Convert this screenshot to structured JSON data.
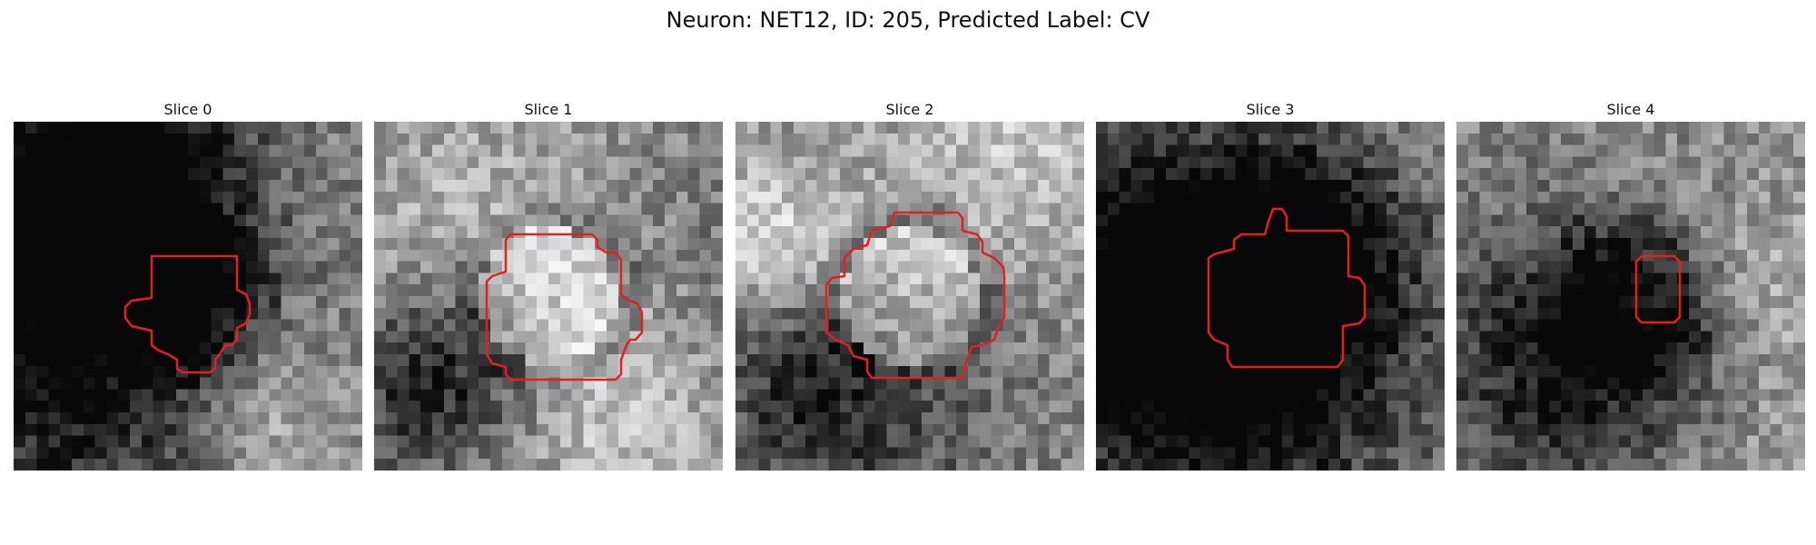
{
  "figure": {
    "title": "Neuron: NET12, ID: 205, Predicted Label: CV",
    "contour_color": "#e32020"
  },
  "slices": [
    {
      "title": "Slice 0",
      "seed": 11,
      "center_tone": "dark"
    },
    {
      "title": "Slice 1",
      "seed": 23,
      "center_tone": "light"
    },
    {
      "title": "Slice 2",
      "seed": 37,
      "center_tone": "light"
    },
    {
      "title": "Slice 3",
      "seed": 53,
      "center_tone": "mid"
    },
    {
      "title": "Slice 4",
      "seed": 71,
      "center_tone": "dark"
    }
  ]
}
